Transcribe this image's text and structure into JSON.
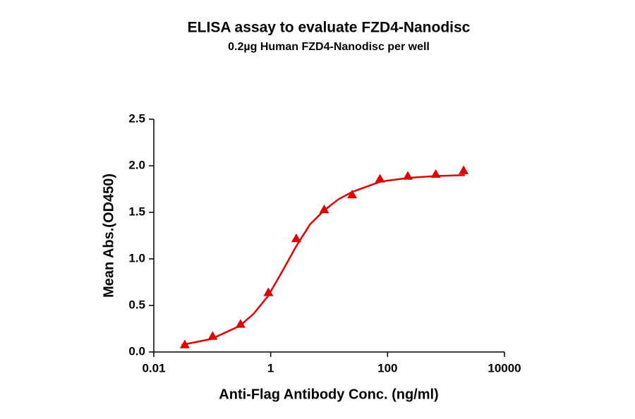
{
  "chart_data": {
    "type": "scatter",
    "title": "ELISA assay to evaluate FZD4-Nanodisc",
    "subtitle": "0.2µg Human FZD4-Nanodisc per well",
    "x_label": "Anti-Flag Antibody Conc. (ng/ml)",
    "y_label": "Mean Abs.(OD450)",
    "x_scale": "log",
    "xlim": [
      0.01,
      10000
    ],
    "xticks": [
      0.01,
      1,
      100,
      10000
    ],
    "ylim": [
      0,
      2.5
    ],
    "yticks": [
      {
        "value": 0,
        "label": "0.0"
      },
      0.5,
      {
        "value": 1,
        "label": "1.0"
      },
      1.5,
      {
        "value": 2,
        "label": "2.0"
      },
      2.5
    ],
    "series": [
      {
        "style": "markers",
        "marker": "triangle",
        "color": "#e00000",
        "x": [
          0.0339,
          0.1016,
          0.305,
          0.914,
          2.74,
          8.23,
          24.7,
          74.1,
          222.2,
          666.7,
          2000
        ],
        "values": [
          0.08,
          0.17,
          0.3,
          0.64,
          1.22,
          1.53,
          1.69,
          1.86,
          1.89,
          1.91,
          1.95
        ]
      },
      {
        "style": "line",
        "color": "#e00000",
        "x": [
          0.03,
          0.097,
          0.295,
          0.51,
          0.9,
          1.56,
          2.7,
          4.7,
          8.2,
          14.4,
          25,
          76,
          230,
          690,
          2100
        ],
        "values": [
          0.076,
          0.14,
          0.28,
          0.41,
          0.6,
          0.86,
          1.13,
          1.37,
          1.52,
          1.64,
          1.72,
          1.83,
          1.87,
          1.89,
          1.9
        ]
      }
    ]
  }
}
